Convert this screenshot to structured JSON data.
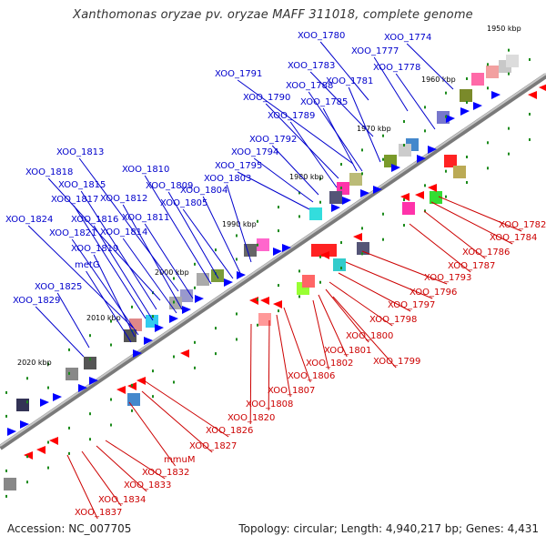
{
  "title": "Xanthomonas oryzae pv. oryzae MAFF 311018, complete genome",
  "footer": {
    "accession": "Accession: NC_007705",
    "summary": "Topology: circular; Length: 4,940,217 bp; Genes: 4,431"
  },
  "colors": {
    "top_strand_label": "#0000cc",
    "bottom_strand_label": "#cc0000",
    "top_strand_gene": "#0000ff",
    "bottom_strand_gene": "#ff0000",
    "backbone": "#888888",
    "tick": "#1a8a1a"
  },
  "scale_labels": [
    "1950 kbp",
    "1960 kbp",
    "1970 kbp",
    "1980 kbp",
    "1990 kbp",
    "2000 kbp",
    "2010 kbp",
    "2020 kbp"
  ],
  "top_labels": [
    "XOO_1780",
    "XOO_1774",
    "XOO_1777",
    "XOO_1783",
    "XOO_1778",
    "XOO_1791",
    "XOO_1788",
    "XOO_1781",
    "XOO_1790",
    "XOO_1785",
    "XOO_1789",
    "XOO_1792",
    "XOO_1794",
    "XOO_1795",
    "XOO_1813",
    "XOO_1810",
    "XOO_1818",
    "XOO_1809",
    "XOO_1815",
    "XOO_1804",
    "XOO_1803",
    "XOO_1817",
    "XOO_1812",
    "XOO_1805",
    "XOO_1824",
    "XOO_1816",
    "XOO_1811",
    "XOO_1821",
    "XOO_1814",
    "XOO_1819",
    "metG",
    "XOO_1825",
    "XOO_1829"
  ],
  "bottom_labels": [
    "XOO_1782",
    "XOO_1784",
    "XOO_1786",
    "XOO_1787",
    "XOO_1793",
    "XOO_1796",
    "XOO_1797",
    "XOO_1798",
    "XOO_1800",
    "XOO_1801",
    "XOO_1799",
    "XOO_1802",
    "XOO_1806",
    "XOO_1807",
    "XOO_1808",
    "XOO_1820",
    "XOO_1826",
    "XOO_1827",
    "mmuM",
    "XOO_1832",
    "XOO_1833",
    "XOO_1834",
    "XOO_1837"
  ]
}
